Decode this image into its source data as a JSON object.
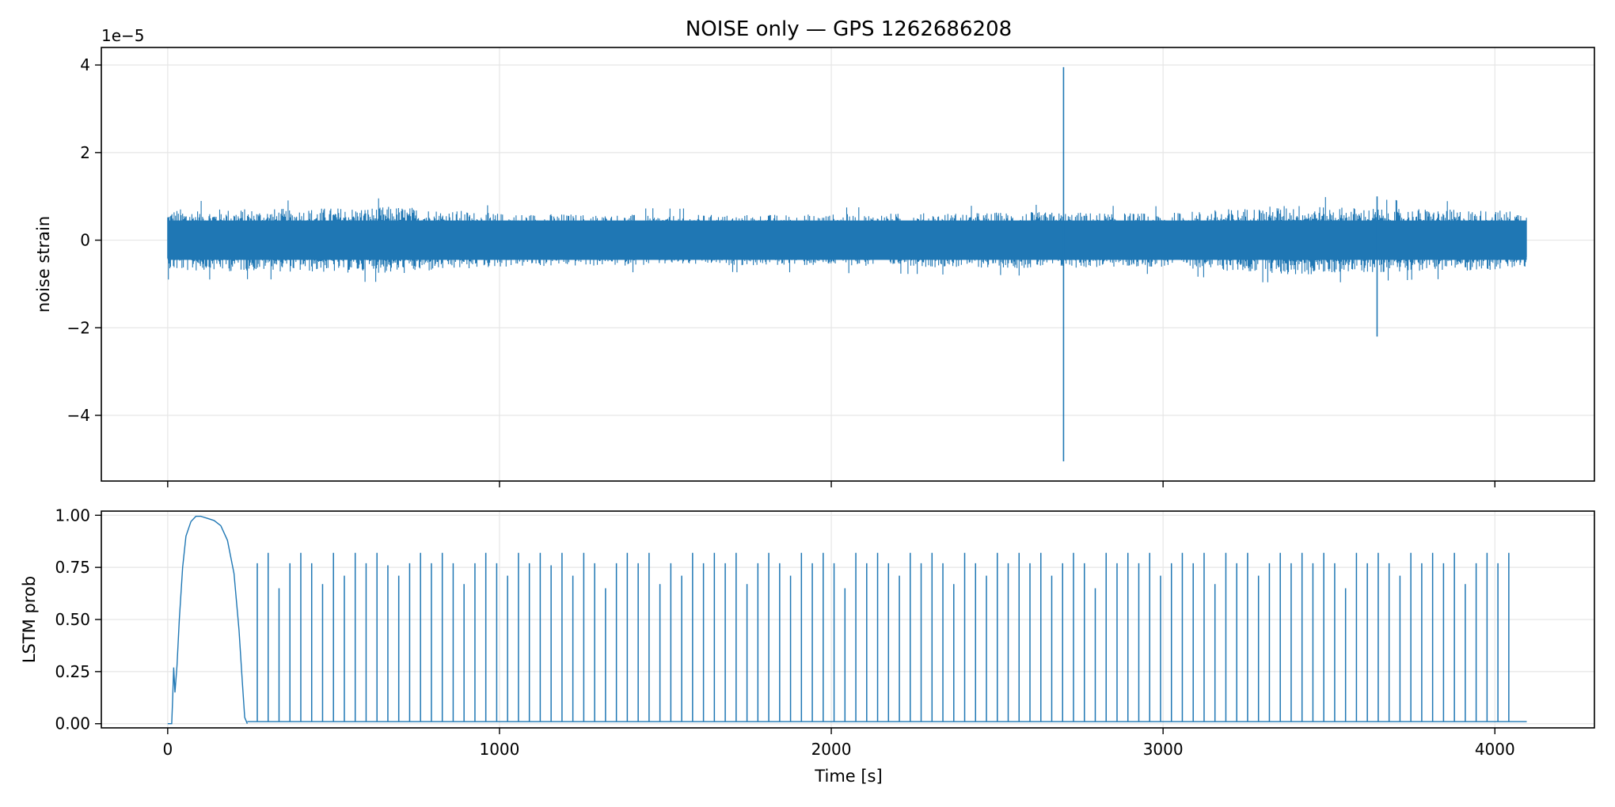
{
  "chart_data": [
    {
      "type": "line",
      "title": "NOISE only — GPS 1262686208",
      "xlabel": "",
      "ylabel": "noise strain",
      "offset_text": "1e−5",
      "scale_exponent": -5,
      "xlim": [
        -200,
        4300
      ],
      "ylim": [
        -5.5,
        4.4
      ],
      "x_ticks": [
        0,
        1000,
        2000,
        3000,
        4000
      ],
      "y_ticks": [
        4,
        2,
        0,
        -2,
        -4
      ],
      "y_tick_labels": [
        "4",
        "2",
        "0",
        "−2",
        "−4"
      ],
      "grid": true,
      "color": "#1f77b4",
      "series": [
        {
          "x_range": [
            0,
            4096
          ],
          "noise_band": {
            "typical_min": -0.6,
            "typical_max": 0.6,
            "extreme_min": -0.95,
            "extreme_max": 0.95
          },
          "band_modulation": [
            {
              "x": 0,
              "amp": 0.72
            },
            {
              "x": 300,
              "amp": 0.72
            },
            {
              "x": 700,
              "amp": 0.78
            },
            {
              "x": 1000,
              "amp": 0.62
            },
            {
              "x": 1500,
              "amp": 0.58
            },
            {
              "x": 2000,
              "amp": 0.6
            },
            {
              "x": 2600,
              "amp": 0.65
            },
            {
              "x": 3000,
              "amp": 0.62
            },
            {
              "x": 3400,
              "amp": 0.82
            },
            {
              "x": 3600,
              "amp": 0.75
            },
            {
              "x": 4096,
              "amp": 0.68
            }
          ],
          "spikes": [
            {
              "x": 2700,
              "max": 3.95,
              "min": -5.05
            },
            {
              "x": 3645,
              "max": 1.0,
              "min": -2.2
            }
          ]
        }
      ]
    },
    {
      "type": "line",
      "title": "",
      "xlabel": "Time [s]",
      "ylabel": "LSTM prob",
      "xlim": [
        -200,
        4300
      ],
      "ylim": [
        -0.02,
        1.02
      ],
      "x_ticks": [
        0,
        1000,
        2000,
        3000,
        4000
      ],
      "x_tick_labels": [
        "0",
        "1000",
        "2000",
        "3000",
        "4000"
      ],
      "y_ticks": [
        1.0,
        0.75,
        0.5,
        0.25,
        0.0
      ],
      "y_tick_labels": [
        "1.00",
        "0.75",
        "0.50",
        "0.25",
        "0.00"
      ],
      "grid": true,
      "color": "#1f77b4",
      "series": [
        {
          "bump": [
            [
              0,
              0.0
            ],
            [
              12,
              0.0
            ],
            [
              15,
              0.12
            ],
            [
              18,
              0.27
            ],
            [
              22,
              0.15
            ],
            [
              28,
              0.28
            ],
            [
              35,
              0.5
            ],
            [
              45,
              0.75
            ],
            [
              55,
              0.9
            ],
            [
              70,
              0.97
            ],
            [
              85,
              0.995
            ],
            [
              100,
              0.995
            ],
            [
              120,
              0.985
            ],
            [
              140,
              0.975
            ],
            [
              160,
              0.95
            ],
            [
              180,
              0.88
            ],
            [
              200,
              0.72
            ],
            [
              215,
              0.45
            ],
            [
              225,
              0.2
            ],
            [
              232,
              0.03
            ],
            [
              240,
              0.0
            ]
          ],
          "spike_start": 270,
          "spike_period": 32.8,
          "spike_heights": [
            0.77,
            0.82,
            0.65,
            0.77,
            0.82,
            0.77,
            0.67,
            0.82,
            0.71,
            0.82,
            0.77,
            0.82,
            0.76,
            0.71,
            0.77,
            0.82,
            0.77,
            0.82,
            0.77,
            0.67,
            0.77,
            0.82,
            0.77,
            0.71,
            0.82,
            0.77,
            0.82,
            0.76,
            0.82,
            0.71,
            0.82,
            0.77,
            0.65,
            0.77,
            0.82,
            0.77,
            0.82,
            0.67,
            0.77,
            0.71,
            0.82,
            0.77,
            0.82,
            0.77,
            0.82,
            0.67,
            0.77,
            0.82,
            0.77,
            0.71,
            0.82,
            0.77,
            0.82,
            0.77,
            0.65,
            0.82,
            0.77,
            0.82,
            0.77,
            0.71,
            0.82,
            0.77,
            0.82,
            0.77,
            0.67,
            0.82,
            0.77,
            0.71,
            0.82,
            0.77,
            0.82,
            0.77,
            0.82,
            0.71,
            0.77,
            0.82,
            0.77,
            0.65,
            0.82,
            0.77,
            0.82,
            0.77,
            0.82,
            0.71,
            0.77,
            0.82,
            0.77,
            0.82,
            0.67,
            0.82,
            0.77,
            0.82,
            0.71,
            0.77,
            0.82,
            0.77,
            0.82,
            0.77,
            0.82,
            0.77,
            0.65,
            0.82,
            0.77,
            0.82,
            0.77,
            0.71,
            0.82,
            0.77,
            0.82,
            0.77,
            0.82,
            0.67,
            0.77,
            0.82,
            0.77,
            0.82
          ],
          "baseline": 0.01,
          "x_end": 4096
        }
      ]
    }
  ]
}
